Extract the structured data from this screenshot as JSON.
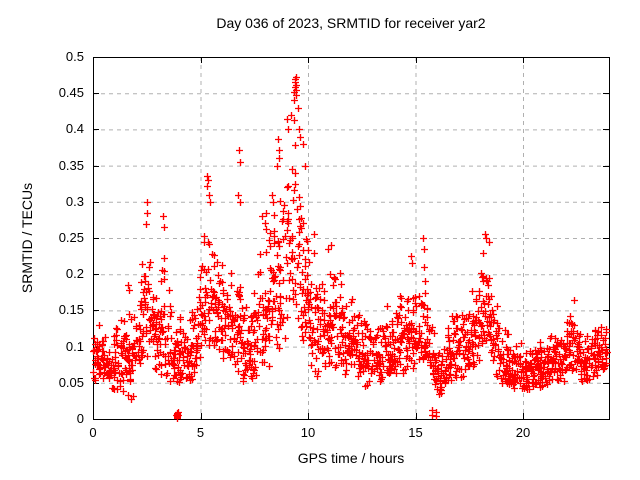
{
  "chart_data": {
    "type": "scatter",
    "title": "Day 036 of 2023, SRMTID for receiver yar2",
    "xlabel": "GPS time / hours",
    "ylabel": "SRMTID / TECUs",
    "xlim": [
      0,
      24
    ],
    "ylim": [
      0,
      0.5
    ],
    "xticks": [
      0,
      5,
      10,
      15,
      20
    ],
    "xtick_labels": [
      "0",
      "5",
      "10",
      "15",
      "20"
    ],
    "yticks": [
      0,
      0.05,
      0.1,
      0.15,
      0.2,
      0.25,
      0.3,
      0.35,
      0.4,
      0.45,
      0.5
    ],
    "ytick_labels": [
      "0",
      "0.05",
      "0.1",
      "0.15",
      "0.2",
      "0.25",
      "0.3",
      "0.35",
      "0.4",
      "0.45",
      "0.5"
    ],
    "grid": true,
    "legend": "none",
    "marker": "plus",
    "marker_color": "#ff0000",
    "grid_color": "#b0b0b0",
    "frame_color": "#000000",
    "background_color": "#ffffff",
    "series_name": "SRMTID",
    "points_per_hour": 78,
    "band_envelope": [
      [
        0.0,
        0.05,
        0.13
      ],
      [
        0.4,
        0.05,
        0.14
      ],
      [
        0.8,
        0.04,
        0.13
      ],
      [
        1.2,
        0.04,
        0.14
      ],
      [
        1.6,
        0.03,
        0.16
      ],
      [
        2.0,
        0.05,
        0.18
      ],
      [
        2.3,
        0.07,
        0.22
      ],
      [
        2.55,
        0.09,
        0.28
      ],
      [
        2.8,
        0.07,
        0.22
      ],
      [
        3.05,
        0.06,
        0.2
      ],
      [
        3.3,
        0.05,
        0.26
      ],
      [
        3.6,
        0.04,
        0.18
      ],
      [
        3.95,
        0.04,
        0.15
      ],
      [
        4.3,
        0.04,
        0.14
      ],
      [
        4.7,
        0.05,
        0.17
      ],
      [
        5.0,
        0.08,
        0.24
      ],
      [
        5.35,
        0.1,
        0.31
      ],
      [
        5.7,
        0.1,
        0.27
      ],
      [
        6.0,
        0.08,
        0.24
      ],
      [
        6.4,
        0.07,
        0.23
      ],
      [
        6.8,
        0.05,
        0.26
      ],
      [
        7.1,
        0.04,
        0.18
      ],
      [
        7.4,
        0.05,
        0.22
      ],
      [
        7.8,
        0.06,
        0.26
      ],
      [
        8.2,
        0.07,
        0.29
      ],
      [
        8.6,
        0.09,
        0.33
      ],
      [
        9.0,
        0.11,
        0.39
      ],
      [
        9.4,
        0.14,
        0.45
      ],
      [
        9.7,
        0.11,
        0.37
      ],
      [
        10.0,
        0.09,
        0.29
      ],
      [
        10.3,
        0.04,
        0.24
      ],
      [
        10.7,
        0.06,
        0.22
      ],
      [
        11.0,
        0.07,
        0.23
      ],
      [
        11.4,
        0.07,
        0.21
      ],
      [
        11.8,
        0.06,
        0.19
      ],
      [
        12.2,
        0.05,
        0.17
      ],
      [
        12.6,
        0.04,
        0.16
      ],
      [
        13.0,
        0.05,
        0.15
      ],
      [
        13.5,
        0.05,
        0.16
      ],
      [
        14.0,
        0.06,
        0.17
      ],
      [
        14.5,
        0.06,
        0.19
      ],
      [
        14.8,
        0.07,
        0.21
      ],
      [
        15.1,
        0.06,
        0.17
      ],
      [
        15.4,
        0.07,
        0.23
      ],
      [
        15.7,
        0.04,
        0.14
      ],
      [
        16.0,
        0.03,
        0.12
      ],
      [
        16.4,
        0.04,
        0.14
      ],
      [
        16.8,
        0.05,
        0.16
      ],
      [
        17.2,
        0.05,
        0.17
      ],
      [
        17.7,
        0.07,
        0.19
      ],
      [
        18.0,
        0.08,
        0.22
      ],
      [
        18.3,
        0.1,
        0.25
      ],
      [
        18.6,
        0.07,
        0.21
      ],
      [
        18.9,
        0.05,
        0.15
      ],
      [
        19.3,
        0.04,
        0.12
      ],
      [
        19.8,
        0.04,
        0.11
      ],
      [
        20.3,
        0.04,
        0.1
      ],
      [
        20.8,
        0.04,
        0.11
      ],
      [
        21.3,
        0.05,
        0.12
      ],
      [
        21.8,
        0.05,
        0.14
      ],
      [
        22.3,
        0.06,
        0.16
      ],
      [
        22.7,
        0.05,
        0.14
      ],
      [
        23.1,
        0.05,
        0.13
      ],
      [
        23.5,
        0.06,
        0.15
      ],
      [
        23.9,
        0.07,
        0.14
      ]
    ],
    "feature_points": [
      [
        1.62,
        0.185
      ],
      [
        1.66,
        0.178
      ],
      [
        1.78,
        0.028
      ],
      [
        1.86,
        0.032
      ],
      [
        2.46,
        0.27
      ],
      [
        2.49,
        0.3
      ],
      [
        2.53,
        0.285
      ],
      [
        3.27,
        0.28
      ],
      [
        3.31,
        0.265
      ],
      [
        5.29,
        0.322
      ],
      [
        5.32,
        0.335
      ],
      [
        5.35,
        0.33
      ],
      [
        5.38,
        0.31
      ],
      [
        5.42,
        0.3
      ],
      [
        6.76,
        0.31
      ],
      [
        6.79,
        0.372
      ],
      [
        6.82,
        0.355
      ],
      [
        6.85,
        0.3
      ],
      [
        7.85,
        0.28
      ],
      [
        8.05,
        0.285
      ],
      [
        8.34,
        0.31
      ],
      [
        8.38,
        0.3
      ],
      [
        8.57,
        0.35
      ],
      [
        8.61,
        0.387
      ],
      [
        8.64,
        0.372
      ],
      [
        8.67,
        0.36
      ],
      [
        9.03,
        0.415
      ],
      [
        9.08,
        0.4
      ],
      [
        9.2,
        0.42
      ],
      [
        9.36,
        0.44
      ],
      [
        9.37,
        0.452
      ],
      [
        9.38,
        0.465
      ],
      [
        9.4,
        0.47
      ],
      [
        9.41,
        0.458
      ],
      [
        9.42,
        0.462
      ],
      [
        9.43,
        0.472
      ],
      [
        9.44,
        0.455
      ],
      [
        9.46,
        0.448
      ],
      [
        9.52,
        0.43
      ],
      [
        9.58,
        0.4
      ],
      [
        9.65,
        0.39
      ],
      [
        9.75,
        0.38
      ],
      [
        9.85,
        0.35
      ],
      [
        10.28,
        0.255
      ],
      [
        10.95,
        0.235
      ],
      [
        11.05,
        0.24
      ],
      [
        14.78,
        0.225
      ],
      [
        14.82,
        0.215
      ],
      [
        15.36,
        0.25
      ],
      [
        15.41,
        0.235
      ],
      [
        18.22,
        0.255
      ],
      [
        18.3,
        0.25
      ],
      [
        18.4,
        0.245
      ],
      [
        22.38,
        0.165
      ]
    ],
    "near_zero_points": [
      [
        3.87,
        0.006
      ],
      [
        3.89,
        0.003
      ],
      [
        3.9,
        0.008
      ],
      [
        3.91,
        0.004
      ],
      [
        3.92,
        0.007
      ],
      [
        3.93,
        0.002
      ],
      [
        3.94,
        0.006
      ],
      [
        3.95,
        0.009
      ],
      [
        15.78,
        0.005
      ],
      [
        15.79,
        0.012
      ],
      [
        15.95,
        0.004
      ],
      [
        15.96,
        0.01
      ]
    ]
  }
}
